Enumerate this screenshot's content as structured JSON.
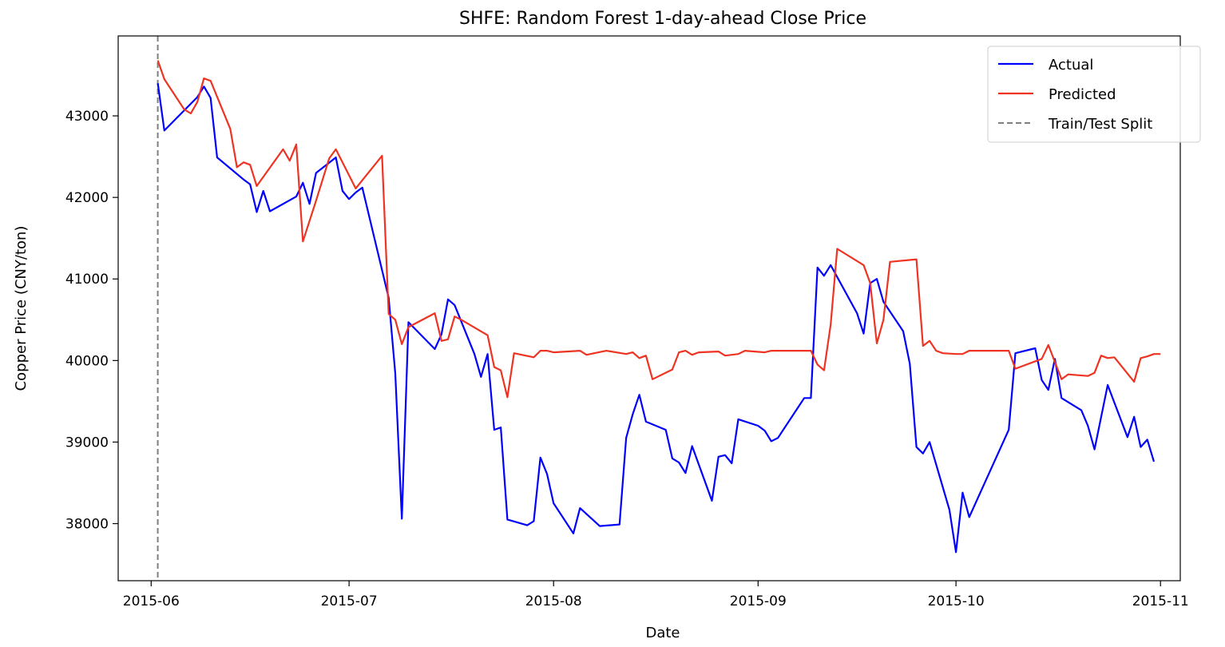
{
  "chart_data": {
    "type": "line",
    "title": "SHFE: Random Forest 1-day-ahead Close Price",
    "xlabel": "Date",
    "ylabel": "Copper Price (CNY/ton)",
    "xlim": [
      "2015-05-27",
      "2015-11-04"
    ],
    "ylim": [
      37300,
      43980
    ],
    "x_ticks": [
      "2015-06-01",
      "2015-07-01",
      "2015-08-01",
      "2015-09-01",
      "2015-10-01",
      "2015-11-01"
    ],
    "x_tick_labels": [
      "2015-06",
      "2015-07",
      "2015-08",
      "2015-09",
      "2015-10",
      "2015-11"
    ],
    "y_ticks": [
      38000,
      39000,
      40000,
      41000,
      42000,
      43000
    ],
    "y_tick_labels": [
      "38000",
      "39000",
      "40000",
      "41000",
      "42000",
      "43000"
    ],
    "grid": false,
    "legend_position": "upper right",
    "split": {
      "name": "Train/Test Split",
      "x": "2015-06-02",
      "color": "#7f7f7f",
      "style": "dashed"
    },
    "series": [
      {
        "name": "Actual",
        "color": "#0000ff",
        "points": [
          [
            "2015-06-02",
            43400
          ],
          [
            "2015-06-03",
            42820
          ],
          [
            "2015-06-08",
            43230
          ],
          [
            "2015-06-09",
            43360
          ],
          [
            "2015-06-10",
            43220
          ],
          [
            "2015-06-11",
            42490
          ],
          [
            "2015-06-15",
            42220
          ],
          [
            "2015-06-16",
            42160
          ],
          [
            "2015-06-17",
            41820
          ],
          [
            "2015-06-18",
            42080
          ],
          [
            "2015-06-19",
            41830
          ],
          [
            "2015-06-23",
            42010
          ],
          [
            "2015-06-24",
            42180
          ],
          [
            "2015-06-25",
            41920
          ],
          [
            "2015-06-26",
            42300
          ],
          [
            "2015-06-29",
            42490
          ],
          [
            "2015-06-30",
            42080
          ],
          [
            "2015-07-01",
            41980
          ],
          [
            "2015-07-02",
            42060
          ],
          [
            "2015-07-03",
            42120
          ],
          [
            "2015-07-07",
            40770
          ],
          [
            "2015-07-08",
            39840
          ],
          [
            "2015-07-09",
            38060
          ],
          [
            "2015-07-10",
            40470
          ],
          [
            "2015-07-14",
            40140
          ],
          [
            "2015-07-15",
            40320
          ],
          [
            "2015-07-16",
            40750
          ],
          [
            "2015-07-17",
            40680
          ],
          [
            "2015-07-20",
            40080
          ],
          [
            "2015-07-21",
            39800
          ],
          [
            "2015-07-22",
            40080
          ],
          [
            "2015-07-23",
            39150
          ],
          [
            "2015-07-24",
            39180
          ],
          [
            "2015-07-25",
            38050
          ],
          [
            "2015-07-28",
            37980
          ],
          [
            "2015-07-29",
            38030
          ],
          [
            "2015-07-30",
            38810
          ],
          [
            "2015-07-31",
            38610
          ],
          [
            "2015-08-01",
            38250
          ],
          [
            "2015-08-04",
            37880
          ],
          [
            "2015-08-05",
            38190
          ],
          [
            "2015-08-08",
            37970
          ],
          [
            "2015-08-11",
            37990
          ],
          [
            "2015-08-12",
            39050
          ],
          [
            "2015-08-13",
            39340
          ],
          [
            "2015-08-14",
            39580
          ],
          [
            "2015-08-15",
            39250
          ],
          [
            "2015-08-18",
            39150
          ],
          [
            "2015-08-19",
            38800
          ],
          [
            "2015-08-20",
            38750
          ],
          [
            "2015-08-21",
            38620
          ],
          [
            "2015-08-22",
            38950
          ],
          [
            "2015-08-25",
            38280
          ],
          [
            "2015-08-26",
            38820
          ],
          [
            "2015-08-27",
            38840
          ],
          [
            "2015-08-28",
            38740
          ],
          [
            "2015-08-29",
            39280
          ],
          [
            "2015-09-01",
            39200
          ],
          [
            "2015-09-02",
            39140
          ],
          [
            "2015-09-03",
            39010
          ],
          [
            "2015-09-04",
            39050
          ],
          [
            "2015-09-08",
            39540
          ],
          [
            "2015-09-09",
            39540
          ],
          [
            "2015-09-10",
            41140
          ],
          [
            "2015-09-11",
            41040
          ],
          [
            "2015-09-12",
            41170
          ],
          [
            "2015-09-16",
            40580
          ],
          [
            "2015-09-17",
            40330
          ],
          [
            "2015-09-18",
            40950
          ],
          [
            "2015-09-19",
            41000
          ],
          [
            "2015-09-20",
            40720
          ],
          [
            "2015-09-23",
            40360
          ],
          [
            "2015-09-24",
            39960
          ],
          [
            "2015-09-25",
            38940
          ],
          [
            "2015-09-26",
            38860
          ],
          [
            "2015-09-27",
            39000
          ],
          [
            "2015-09-30",
            38170
          ],
          [
            "2015-10-01",
            37650
          ],
          [
            "2015-10-02",
            38380
          ],
          [
            "2015-10-03",
            38080
          ],
          [
            "2015-10-09",
            39150
          ],
          [
            "2015-10-10",
            40090
          ],
          [
            "2015-10-13",
            40150
          ],
          [
            "2015-10-14",
            39760
          ],
          [
            "2015-10-15",
            39640
          ],
          [
            "2015-10-16",
            40020
          ],
          [
            "2015-10-17",
            39540
          ],
          [
            "2015-10-20",
            39390
          ],
          [
            "2015-10-21",
            39200
          ],
          [
            "2015-10-22",
            38910
          ],
          [
            "2015-10-24",
            39700
          ],
          [
            "2015-10-27",
            39060
          ],
          [
            "2015-10-28",
            39310
          ],
          [
            "2015-10-29",
            38940
          ],
          [
            "2015-10-30",
            39030
          ],
          [
            "2015-10-31",
            38760
          ]
        ]
      },
      {
        "name": "Predicted",
        "color": "#ee3322",
        "points": [
          [
            "2015-06-02",
            43680
          ],
          [
            "2015-06-03",
            43450
          ],
          [
            "2015-06-06",
            43080
          ],
          [
            "2015-06-07",
            43030
          ],
          [
            "2015-06-08",
            43170
          ],
          [
            "2015-06-09",
            43460
          ],
          [
            "2015-06-10",
            43430
          ],
          [
            "2015-06-13",
            42840
          ],
          [
            "2015-06-14",
            42370
          ],
          [
            "2015-06-15",
            42430
          ],
          [
            "2015-06-16",
            42400
          ],
          [
            "2015-06-17",
            42140
          ],
          [
            "2015-06-21",
            42590
          ],
          [
            "2015-06-22",
            42450
          ],
          [
            "2015-06-23",
            42650
          ],
          [
            "2015-06-24",
            41460
          ],
          [
            "2015-06-26",
            41960
          ],
          [
            "2015-06-28",
            42480
          ],
          [
            "2015-06-29",
            42590
          ],
          [
            "2015-07-02",
            42110
          ],
          [
            "2015-07-06",
            42510
          ],
          [
            "2015-07-07",
            40570
          ],
          [
            "2015-07-08",
            40500
          ],
          [
            "2015-07-09",
            40200
          ],
          [
            "2015-07-10",
            40410
          ],
          [
            "2015-07-14",
            40580
          ],
          [
            "2015-07-15",
            40240
          ],
          [
            "2015-07-16",
            40260
          ],
          [
            "2015-07-17",
            40540
          ],
          [
            "2015-07-18",
            40500
          ],
          [
            "2015-07-22",
            40310
          ],
          [
            "2015-07-23",
            39920
          ],
          [
            "2015-07-24",
            39880
          ],
          [
            "2015-07-25",
            39550
          ],
          [
            "2015-07-26",
            40090
          ],
          [
            "2015-07-29",
            40040
          ],
          [
            "2015-07-30",
            40120
          ],
          [
            "2015-07-31",
            40120
          ],
          [
            "2015-08-01",
            40100
          ],
          [
            "2015-08-05",
            40120
          ],
          [
            "2015-08-06",
            40070
          ],
          [
            "2015-08-09",
            40120
          ],
          [
            "2015-08-12",
            40080
          ],
          [
            "2015-08-13",
            40100
          ],
          [
            "2015-08-14",
            40030
          ],
          [
            "2015-08-15",
            40060
          ],
          [
            "2015-08-16",
            39770
          ],
          [
            "2015-08-19",
            39890
          ],
          [
            "2015-08-20",
            40100
          ],
          [
            "2015-08-21",
            40120
          ],
          [
            "2015-08-22",
            40070
          ],
          [
            "2015-08-23",
            40100
          ],
          [
            "2015-08-26",
            40110
          ],
          [
            "2015-08-27",
            40060
          ],
          [
            "2015-08-29",
            40080
          ],
          [
            "2015-08-30",
            40120
          ],
          [
            "2015-09-02",
            40100
          ],
          [
            "2015-09-03",
            40120
          ],
          [
            "2015-09-09",
            40120
          ],
          [
            "2015-09-10",
            39950
          ],
          [
            "2015-09-11",
            39880
          ],
          [
            "2015-09-12",
            40440
          ],
          [
            "2015-09-13",
            41370
          ],
          [
            "2015-09-17",
            41170
          ],
          [
            "2015-09-18",
            40950
          ],
          [
            "2015-09-19",
            40210
          ],
          [
            "2015-09-20",
            40500
          ],
          [
            "2015-09-21",
            41210
          ],
          [
            "2015-09-25",
            41240
          ],
          [
            "2015-09-26",
            40180
          ],
          [
            "2015-09-27",
            40240
          ],
          [
            "2015-09-28",
            40120
          ],
          [
            "2015-09-29",
            40090
          ],
          [
            "2015-10-01",
            40080
          ],
          [
            "2015-10-02",
            40080
          ],
          [
            "2015-10-03",
            40120
          ],
          [
            "2015-10-09",
            40120
          ],
          [
            "2015-10-10",
            39900
          ],
          [
            "2015-10-14",
            40020
          ],
          [
            "2015-10-15",
            40190
          ],
          [
            "2015-10-17",
            39770
          ],
          [
            "2015-10-18",
            39830
          ],
          [
            "2015-10-21",
            39810
          ],
          [
            "2015-10-22",
            39850
          ],
          [
            "2015-10-23",
            40060
          ],
          [
            "2015-10-24",
            40030
          ],
          [
            "2015-10-25",
            40040
          ],
          [
            "2015-10-28",
            39740
          ],
          [
            "2015-10-29",
            40030
          ],
          [
            "2015-10-30",
            40050
          ],
          [
            "2015-10-31",
            40080
          ],
          [
            "2015-11-01",
            40080
          ]
        ]
      }
    ]
  }
}
